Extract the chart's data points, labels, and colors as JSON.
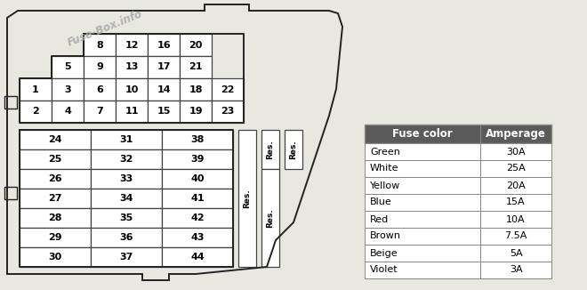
{
  "bg_color": "#e8e8e0",
  "box_bg": "#ffffff",
  "outline_color": "#222222",
  "cell_border": "#444444",
  "table_header_bg": "#5a5a5a",
  "table_header_fg": "#ffffff",
  "table_border": "#888888",
  "fuse_colors": [
    "Green",
    "White",
    "Yellow",
    "Blue",
    "Red",
    "Brown",
    "Beige",
    "Violet"
  ],
  "fuse_amperages": [
    "30A",
    "25A",
    "20A",
    "15A",
    "10A",
    "7.5A",
    "5A",
    "3A"
  ],
  "upper_labels": [
    [
      null,
      null,
      "8",
      "12",
      "16",
      "20"
    ],
    [
      null,
      "5",
      "9",
      "13",
      "17",
      "21"
    ],
    [
      "1",
      "3",
      "6",
      "10",
      "14",
      "18",
      "22"
    ],
    [
      "2",
      "4",
      "7",
      "11",
      "15",
      "19",
      "23"
    ]
  ],
  "lower_labels": [
    [
      "24",
      "31",
      "38"
    ],
    [
      "25",
      "32",
      "39"
    ],
    [
      "26",
      "33",
      "40"
    ],
    [
      "27",
      "34",
      "41"
    ],
    [
      "28",
      "35",
      "42"
    ],
    [
      "29",
      "36",
      "43"
    ],
    [
      "30",
      "37",
      "44"
    ]
  ],
  "watermark": "Fuse-Box.info",
  "font_size_cell": 8,
  "font_size_table": 8.5
}
